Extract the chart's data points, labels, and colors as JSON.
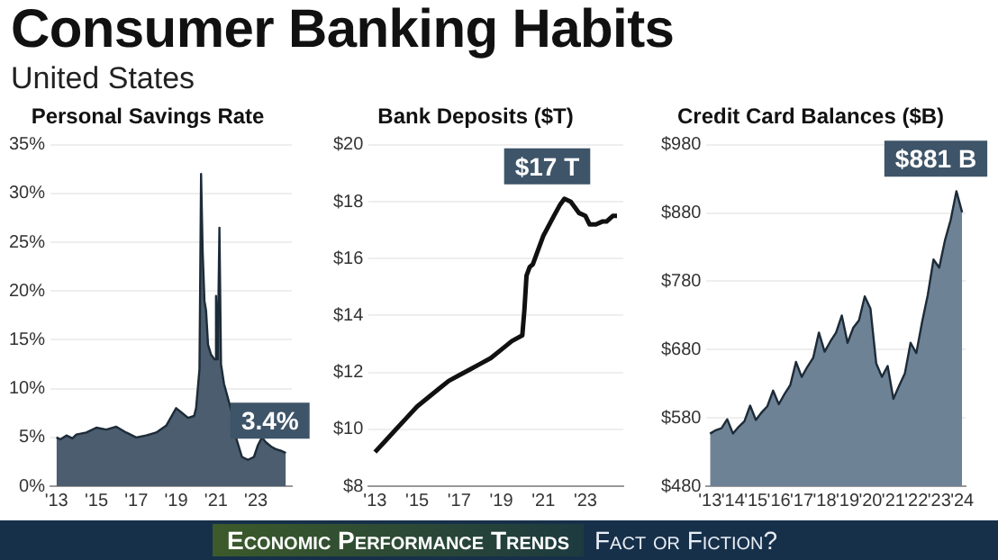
{
  "chart_data": [
    {
      "type": "other",
      "title": "Consumer Banking Habits",
      "subtitle": "United States",
      "annotations": [
        "Economic Performance Trends",
        "Fact or Fiction?"
      ]
    },
    {
      "type": "area",
      "title": "Personal Savings Rate",
      "color": "#4b5d6e",
      "x": [
        2013.0,
        2013.2,
        2013.5,
        2013.8,
        2014.0,
        2014.5,
        2015.0,
        2015.5,
        2016.0,
        2016.5,
        2017.0,
        2017.5,
        2018.0,
        2018.5,
        2019.0,
        2019.3,
        2019.6,
        2019.9,
        2020.0,
        2020.17,
        2020.25,
        2020.33,
        2020.42,
        2020.5,
        2020.6,
        2020.75,
        2020.92,
        2021.0,
        2021.08,
        2021.17,
        2021.25,
        2021.4,
        2021.6,
        2021.8,
        2022.0,
        2022.3,
        2022.6,
        2022.9,
        2023.1,
        2023.3,
        2023.5,
        2023.8,
        2024.0,
        2024.3,
        2024.5
      ],
      "values": [
        5.0,
        4.8,
        5.2,
        4.9,
        5.3,
        5.5,
        6.0,
        5.8,
        6.1,
        5.5,
        5.0,
        5.2,
        5.5,
        6.2,
        8.0,
        7.5,
        7.0,
        7.2,
        8.0,
        12.0,
        32.0,
        24.0,
        19.0,
        18.0,
        14.5,
        13.5,
        13.0,
        19.5,
        13.0,
        26.5,
        12.5,
        10.5,
        9.0,
        7.5,
        5.0,
        3.0,
        2.7,
        3.0,
        4.2,
        5.0,
        4.5,
        4.0,
        3.8,
        3.6,
        3.4
      ],
      "xlim": [
        2012.7,
        2024.8
      ],
      "xticks": [
        {
          "value": 2013,
          "label": "'13"
        },
        {
          "value": 2015,
          "label": "'15"
        },
        {
          "value": 2017,
          "label": "'17"
        },
        {
          "value": 2019,
          "label": "'19"
        },
        {
          "value": 2021,
          "label": "'21"
        },
        {
          "value": 2023,
          "label": "'23"
        }
      ],
      "ylim": [
        0,
        35
      ],
      "yticks": [
        {
          "value": 0,
          "label": "0%"
        },
        {
          "value": 5,
          "label": "5%"
        },
        {
          "value": 10,
          "label": "10%"
        },
        {
          "value": 15,
          "label": "15%"
        },
        {
          "value": 20,
          "label": "20%"
        },
        {
          "value": 25,
          "label": "25%"
        },
        {
          "value": 30,
          "label": "30%"
        },
        {
          "value": 35,
          "label": "35%"
        }
      ],
      "grid": "y",
      "annotations": [
        {
          "text": "3.4%",
          "x": 2024.5,
          "y": 3.4
        }
      ]
    },
    {
      "type": "line",
      "title": "Bank Deposits ($T)",
      "color": "#111111",
      "x": [
        2013.0,
        2013.5,
        2014.0,
        2014.5,
        2015.0,
        2015.5,
        2016.0,
        2016.5,
        2017.0,
        2017.5,
        2018.0,
        2018.5,
        2019.0,
        2019.5,
        2020.0,
        2020.1,
        2020.2,
        2020.35,
        2020.5,
        2020.75,
        2021.0,
        2021.5,
        2021.8,
        2022.0,
        2022.3,
        2022.7,
        2023.0,
        2023.2,
        2023.5,
        2023.8,
        2024.0,
        2024.3,
        2024.5
      ],
      "values": [
        9.2,
        9.6,
        10.0,
        10.4,
        10.8,
        11.1,
        11.4,
        11.7,
        11.9,
        12.1,
        12.3,
        12.5,
        12.8,
        13.1,
        13.3,
        14.2,
        15.4,
        15.7,
        15.8,
        16.3,
        16.8,
        17.5,
        17.9,
        18.1,
        18.0,
        17.6,
        17.5,
        17.2,
        17.2,
        17.3,
        17.3,
        17.5,
        17.5
      ],
      "xlim": [
        2012.7,
        2024.8
      ],
      "xticks": [
        {
          "value": 2013,
          "label": "'13"
        },
        {
          "value": 2015,
          "label": "'15"
        },
        {
          "value": 2017,
          "label": "'17"
        },
        {
          "value": 2019,
          "label": "'19"
        },
        {
          "value": 2021,
          "label": "'21"
        },
        {
          "value": 2023,
          "label": "'23"
        }
      ],
      "ylim": [
        8,
        20
      ],
      "yticks": [
        {
          "value": 8,
          "label": "$8"
        },
        {
          "value": 10,
          "label": "$10"
        },
        {
          "value": 12,
          "label": "$12"
        },
        {
          "value": 14,
          "label": "$14"
        },
        {
          "value": 16,
          "label": "$16"
        },
        {
          "value": 18,
          "label": "$18"
        },
        {
          "value": 20,
          "label": "$20"
        }
      ],
      "grid": "y",
      "annotations": [
        {
          "text": "$17 T",
          "x": 2022.0,
          "y": 18.1
        }
      ]
    },
    {
      "type": "area",
      "title": "Credit Card Balances ($B)",
      "color": "#6e8295",
      "x": [
        2013.0,
        2013.25,
        2013.5,
        2013.75,
        2014.0,
        2014.25,
        2014.5,
        2014.75,
        2015.0,
        2015.25,
        2015.5,
        2015.75,
        2016.0,
        2016.25,
        2016.5,
        2016.75,
        2017.0,
        2017.25,
        2017.5,
        2017.75,
        2018.0,
        2018.25,
        2018.5,
        2018.75,
        2019.0,
        2019.25,
        2019.5,
        2019.75,
        2020.0,
        2020.25,
        2020.5,
        2020.75,
        2021.0,
        2021.25,
        2021.5,
        2021.75,
        2022.0,
        2022.25,
        2022.5,
        2022.75,
        2023.0,
        2023.25,
        2023.5,
        2023.75,
        2024.0
      ],
      "values": [
        557,
        562,
        565,
        578,
        557,
        567,
        575,
        598,
        577,
        588,
        597,
        620,
        600,
        615,
        628,
        662,
        640,
        655,
        668,
        705,
        677,
        692,
        705,
        730,
        690,
        712,
        723,
        758,
        740,
        660,
        640,
        656,
        608,
        627,
        645,
        690,
        675,
        720,
        760,
        812,
        800,
        840,
        870,
        912,
        881
      ],
      "xlim": [
        2012.85,
        2024.15
      ],
      "xticks": [
        {
          "value": 2013,
          "label": "'13"
        },
        {
          "value": 2014,
          "label": "'14"
        },
        {
          "value": 2015,
          "label": "'15"
        },
        {
          "value": 2016,
          "label": "'16"
        },
        {
          "value": 2017,
          "label": "'17"
        },
        {
          "value": 2018,
          "label": "'18"
        },
        {
          "value": 2019,
          "label": "'19"
        },
        {
          "value": 2020,
          "label": "'20"
        },
        {
          "value": 2021,
          "label": "'21"
        },
        {
          "value": 2022,
          "label": "'22"
        },
        {
          "value": 2023,
          "label": "'23"
        },
        {
          "value": 2024,
          "label": "'24"
        }
      ],
      "ylim": [
        480,
        980
      ],
      "yticks": [
        {
          "value": 480,
          "label": "$480"
        },
        {
          "value": 580,
          "label": "$580"
        },
        {
          "value": 680,
          "label": "$680"
        },
        {
          "value": 780,
          "label": "$780"
        },
        {
          "value": 880,
          "label": "$880"
        },
        {
          "value": 980,
          "label": "$980"
        }
      ],
      "grid": "y",
      "annotations": [
        {
          "text": "$881 B",
          "x": 2023.75,
          "y": 912
        }
      ]
    }
  ]
}
